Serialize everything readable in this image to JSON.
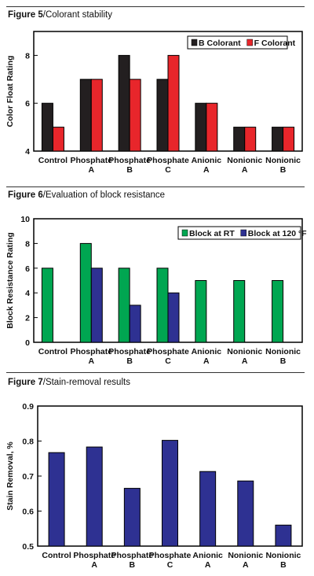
{
  "figures": [
    {
      "number": "Figure 5",
      "caption": "Colorant stability",
      "chart_data": {
        "type": "bar",
        "categories": [
          [
            "Control"
          ],
          [
            "Phosphate",
            "A"
          ],
          [
            "Phosphate",
            "B"
          ],
          [
            "Phosphate",
            "C"
          ],
          [
            "Anionic",
            "A"
          ],
          [
            "Nonionic",
            "A"
          ],
          [
            "Nonionic",
            "B"
          ]
        ],
        "series": [
          {
            "name": "B Colorant",
            "color": "#231f20",
            "values": [
              6,
              7,
              8,
              7,
              6,
              5,
              5
            ]
          },
          {
            "name": "F Colorant",
            "color": "#e8262b",
            "values": [
              5,
              7,
              7,
              8,
              6,
              5,
              5
            ]
          }
        ],
        "ylabel": "Color Float Rating",
        "ylim": [
          4,
          9
        ],
        "yticks": [
          4,
          6,
          8
        ],
        "ytick_labels": [
          "4",
          "6",
          "8"
        ],
        "legend_position": "top-right",
        "grid": false
      }
    },
    {
      "number": "Figure 6",
      "caption": "Evaluation of block resistance",
      "chart_data": {
        "type": "bar",
        "categories": [
          [
            "Control"
          ],
          [
            "Phosphate",
            "A"
          ],
          [
            "Phosphate",
            "B"
          ],
          [
            "Phosphate",
            "C"
          ],
          [
            "Anionic",
            "A"
          ],
          [
            "Nonionic",
            "A"
          ],
          [
            "Nonionic",
            "B"
          ]
        ],
        "series": [
          {
            "name": "Block at RT",
            "color": "#00a651",
            "values": [
              6,
              8,
              6,
              6,
              5,
              5,
              5
            ]
          },
          {
            "name": "Block at 120 °F",
            "color": "#2e3192",
            "values": [
              null,
              6,
              3,
              4,
              null,
              null,
              null
            ]
          }
        ],
        "ylabel": "Block Resistance Rating",
        "ylim": [
          0,
          10
        ],
        "yticks": [
          0,
          2,
          4,
          6,
          8,
          10
        ],
        "ytick_labels": [
          "0",
          "2",
          "4",
          "6",
          "8",
          "10"
        ],
        "legend_position": "top-right",
        "grid": false
      }
    },
    {
      "number": "Figure 7",
      "caption": "Stain-removal results",
      "chart_data": {
        "type": "bar",
        "categories": [
          [
            "Control"
          ],
          [
            "Phosphate",
            "A"
          ],
          [
            "Phosphate",
            "B"
          ],
          [
            "Phosphate",
            "C"
          ],
          [
            "Anionic",
            "A"
          ],
          [
            "Nonionic",
            "A"
          ],
          [
            "Nonionic",
            "B"
          ]
        ],
        "series": [
          {
            "color": "#2e3192",
            "values": [
              0.767,
              0.783,
              0.665,
              0.802,
              0.713,
              0.686,
              0.56
            ]
          }
        ],
        "ylabel": "Stain Removal, %",
        "ylim": [
          0.5,
          0.9
        ],
        "yticks": [
          0.5,
          0.6,
          0.7,
          0.8,
          0.9
        ],
        "ytick_labels": [
          "0.5",
          "0.6",
          "0.7",
          "0.8",
          "0.9"
        ],
        "legend_position": "none",
        "grid": false
      }
    }
  ]
}
